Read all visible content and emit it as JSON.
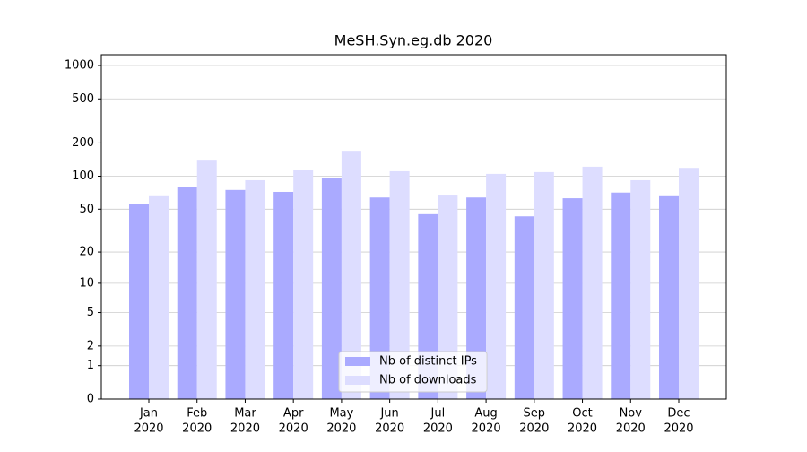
{
  "chart_data": {
    "type": "bar",
    "title": "MeSH.Syn.eg.db 2020",
    "scale": "log1p",
    "categories": [
      [
        "Jan",
        "2020"
      ],
      [
        "Feb",
        "2020"
      ],
      [
        "Mar",
        "2020"
      ],
      [
        "Apr",
        "2020"
      ],
      [
        "May",
        "2020"
      ],
      [
        "Jun",
        "2020"
      ],
      [
        "Jul",
        "2020"
      ],
      [
        "Aug",
        "2020"
      ],
      [
        "Sep",
        "2020"
      ],
      [
        "Oct",
        "2020"
      ],
      [
        "Nov",
        "2020"
      ],
      [
        "Dec",
        "2020"
      ]
    ],
    "series": [
      {
        "name": "Nb of distinct IPs",
        "color": "#aaaaff",
        "values": [
          56,
          80,
          75,
          72,
          97,
          64,
          45,
          64,
          43,
          63,
          71,
          67
        ]
      },
      {
        "name": "Nb of downloads",
        "color": "#ddddff",
        "values": [
          67,
          141,
          92,
          113,
          170,
          111,
          68,
          105,
          109,
          122,
          92,
          119
        ]
      }
    ],
    "ylim": [
      0,
      1250
    ],
    "yticks": [
      0,
      1,
      2,
      5,
      10,
      20,
      50,
      100,
      200,
      500,
      1000
    ],
    "grid": true,
    "legend": "lower center"
  }
}
